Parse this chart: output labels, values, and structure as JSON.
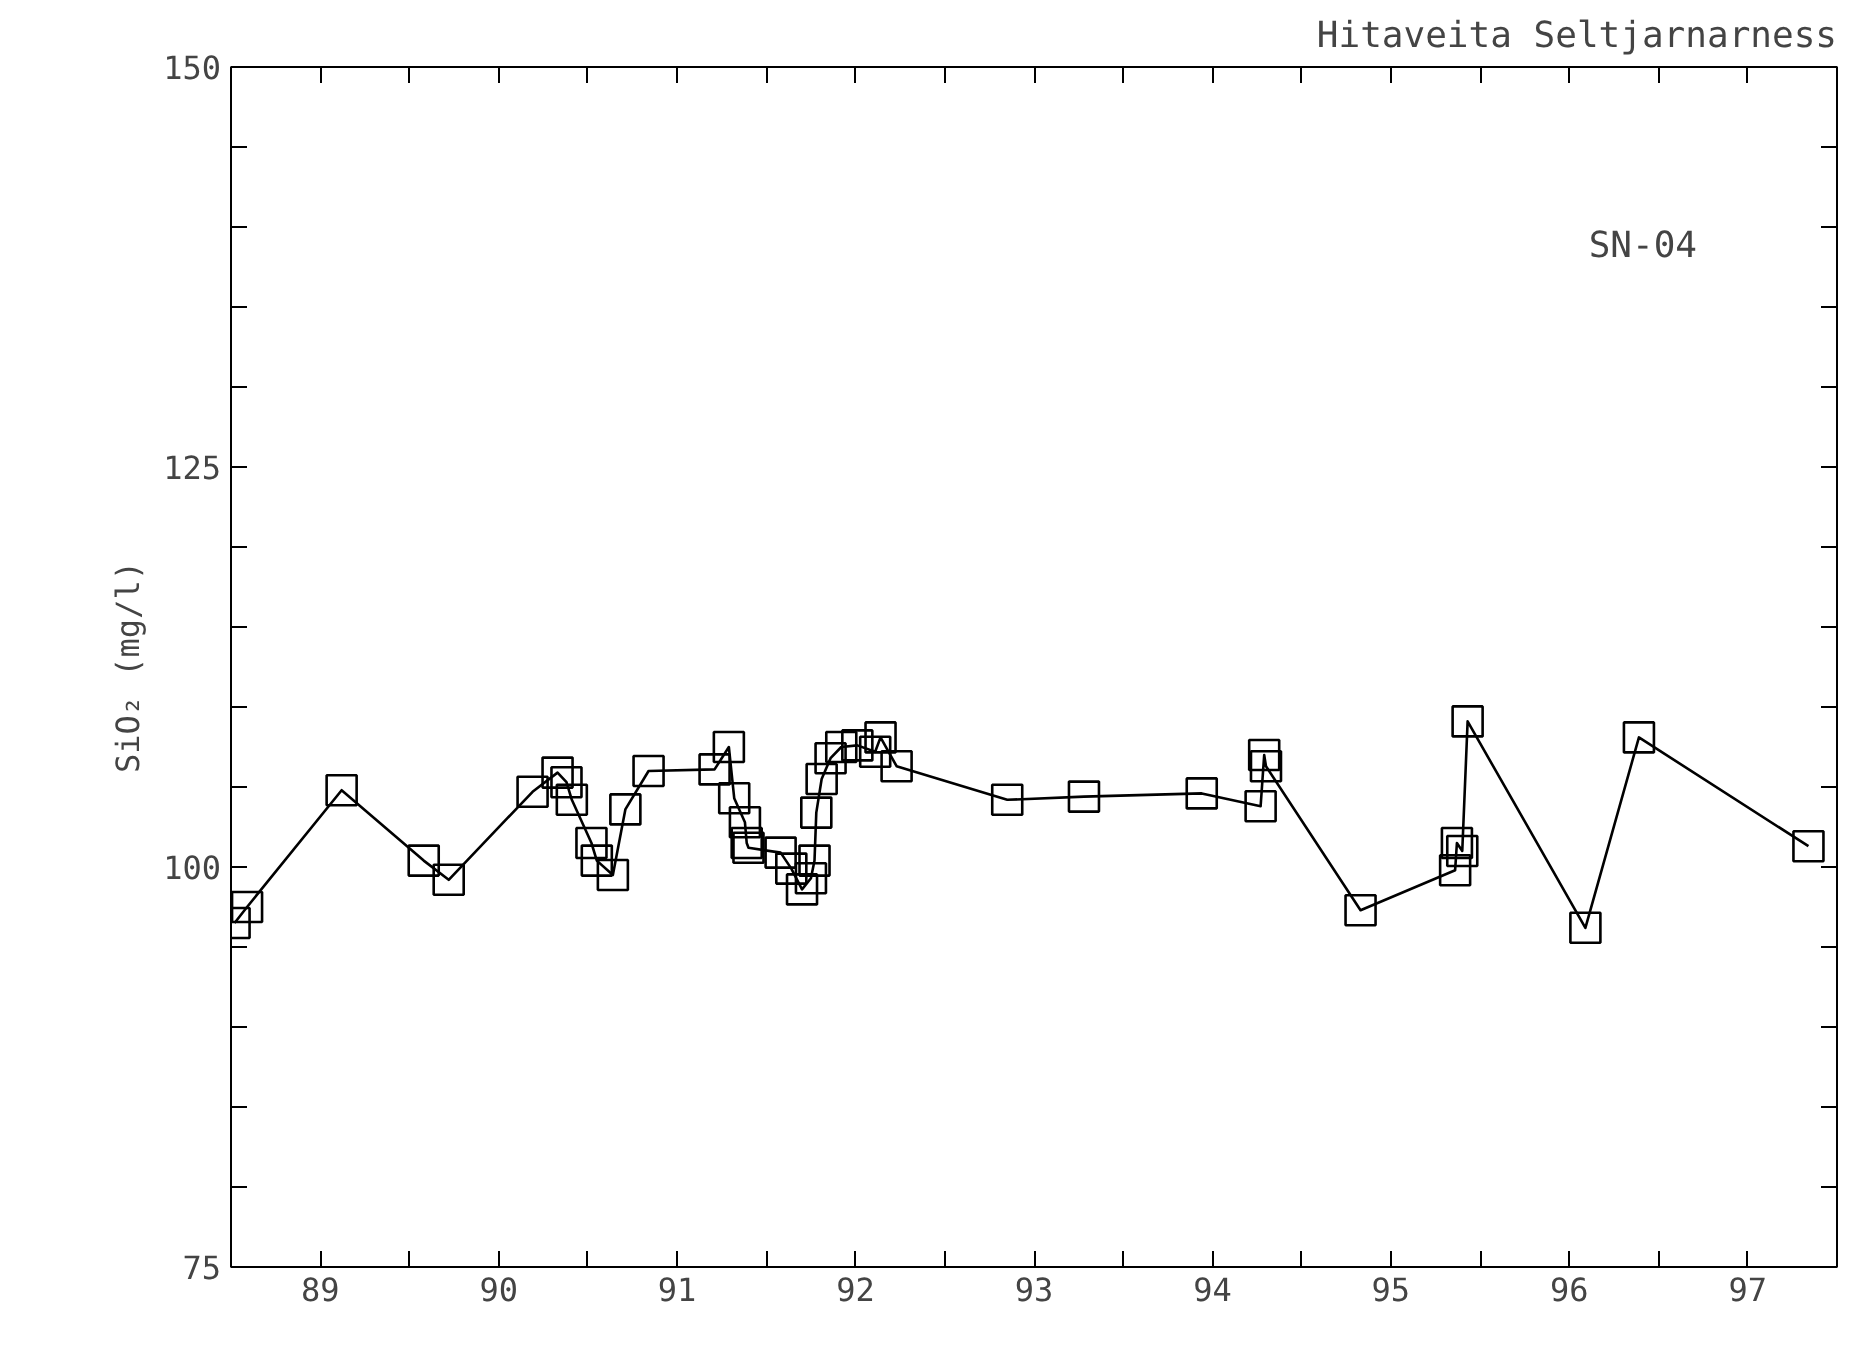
{
  "chart_data": {
    "type": "line",
    "title": "Hitaveita Seltjarnarness",
    "ylabel": "SiO₂ (mg/l)",
    "annotations": [
      "SN-04"
    ],
    "x": [
      88.52,
      88.59,
      89.12,
      89.58,
      89.72,
      90.19,
      90.33,
      90.38,
      90.41,
      90.52,
      90.55,
      90.64,
      90.71,
      90.84,
      91.21,
      91.29,
      91.32,
      91.38,
      91.39,
      91.4,
      91.58,
      91.64,
      91.7,
      91.75,
      91.77,
      91.78,
      91.81,
      91.86,
      91.92,
      92.01,
      92.11,
      92.14,
      92.23,
      92.85,
      93.28,
      93.94,
      94.27,
      94.29,
      94.3,
      94.83,
      95.36,
      95.37,
      95.4,
      95.43,
      96.09,
      96.39,
      97.34
    ],
    "series": [
      {
        "color": "#000000",
        "values": [
          96.5,
          97.5,
          104.8,
          100.4,
          99.2,
          104.7,
          105.9,
          105.3,
          104.2,
          101.5,
          100.4,
          99.5,
          103.6,
          106,
          106.1,
          107.5,
          104.3,
          102.8,
          101.5,
          101.2,
          100.9,
          99.9,
          98.6,
          99.3,
          100.4,
          103.4,
          105.5,
          106.8,
          107.5,
          107.6,
          107.2,
          108.1,
          106.3,
          104.2,
          104.4,
          104.6,
          103.8,
          107,
          106.3,
          97.3,
          99.8,
          101.5,
          101,
          109.1,
          96.2,
          108.1,
          101.3
        ]
      }
    ],
    "marker": "square",
    "line_style": "solid",
    "grid": false,
    "xlim": [
      88.5,
      97.5
    ],
    "ylim": [
      75,
      150
    ],
    "xticks": [
      {
        "value": 88.5,
        "label": null
      },
      89,
      {
        "value": 89.5,
        "label": null
      },
      90,
      {
        "value": 90.5,
        "label": null
      },
      91,
      {
        "value": 91.5,
        "label": null
      },
      92,
      {
        "value": 92.5,
        "label": null
      },
      93,
      {
        "value": 93.5,
        "label": null
      },
      94,
      {
        "value": 94.5,
        "label": null
      },
      95,
      {
        "value": 95.5,
        "label": null
      },
      96,
      {
        "value": 96.5,
        "label": null
      },
      97,
      {
        "value": 97.5,
        "label": null
      }
    ],
    "yticks": [
      75,
      {
        "value": 80,
        "label": null
      },
      {
        "value": 85,
        "label": null
      },
      {
        "value": 90,
        "label": null
      },
      {
        "value": 95,
        "label": null
      },
      100,
      {
        "value": 105,
        "label": null
      },
      {
        "value": 110,
        "label": null
      },
      {
        "value": 115,
        "label": null
      },
      {
        "value": 120,
        "label": null
      },
      125,
      {
        "value": 130,
        "label": null
      },
      {
        "value": 135,
        "label": null
      },
      {
        "value": 140,
        "label": null
      },
      {
        "value": 145,
        "label": null
      },
      150
    ]
  }
}
